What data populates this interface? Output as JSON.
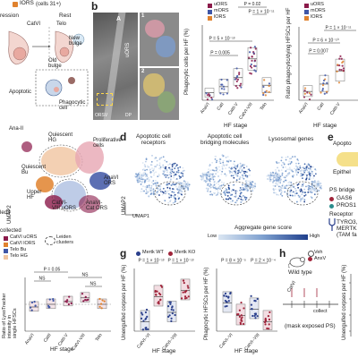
{
  "panel_a": {
    "legend_top": "IORS",
    "legend_cells": "(cells 31+)",
    "label_rest": "Rest",
    "label_ression": "ression",
    "label_catvi": "CatVI",
    "label_telo": "Telo",
    "label_new_bulge": "New\nbulge",
    "label_old_bulge": "Old\nbulge",
    "label_apoptotic": "Apoptotic",
    "label_phagocytic_cell": "Phagocytic\ncell"
  },
  "panel_b": {
    "letter": "b",
    "em_label_uors": "uORS",
    "em_label_a": "A",
    "em_label_orsv": "ORSV",
    "em_label_dp": "DP",
    "inset_1": "1",
    "inset_2": "2",
    "chart1_ylabel": "Phagocytic cells per HF (%)",
    "chart2_ylabel": "Ratio phagocytic/dying HFSCs per HF",
    "xlabel": "HF stage",
    "legend": [
      "uORS",
      "mORS",
      "lORS"
    ],
    "pvals_chart1": [
      "P = 0.02",
      "P = 1 × 10⁻¹¹",
      "P = 5 × 10⁻¹³",
      "P = 0.005"
    ],
    "pvals_chart2": [
      "P = 1 × 10⁻¹¹",
      "P = 6 × 10⁻¹⁰",
      "P = 0.007"
    ],
    "categories1": [
      "AnaVI",
      "CatI",
      "CatII-V",
      "CatVI-VIII",
      "Telo"
    ],
    "categories2": [
      "AnaVI",
      "CatI",
      "CatII-V"
    ]
  },
  "panel_c": {
    "label_quiescent_hg": "Quiescent\nHG",
    "label_proliferative": "Proliferative\ncells",
    "label_quiescent_bu": "Quiescent\nBu",
    "label_upper_hf": "Upper\nHF",
    "label_anavi_ors": "AnaVI\nORS",
    "label_catvi_uors": "CatVI-\nVIII uORS",
    "label_anavi_cat": "AnaVI-\nCat ORS",
    "umap2": "UMAP2",
    "umap1": "UMAP1",
    "leq3": "leq3",
    "label_collected": "collected",
    "legend": [
      "CatVI uORS",
      "CatVI lORS",
      "Telo Bu",
      "Telo HG"
    ],
    "leiden": "Leiden\nclusters",
    "ana_ii": "Ana-II"
  },
  "panel_d": {
    "letter": "d",
    "titles": [
      "Apoptotic cell\nreceptors",
      "Apoptotic cell\nbridging molecules",
      "Lysosomal genes"
    ],
    "umap1": "UMAP1",
    "umap2": "UMAP2",
    "score_label": "Aggregate gene score",
    "low": "Low",
    "high": "High"
  },
  "panel_e": {
    "letter": "e",
    "apopto": "Apopto",
    "epithel": "Epithel",
    "ps_bridge": "PS bridge",
    "gas6": "GAS6",
    "pros1": "PROS1",
    "receptors": "Receptor",
    "tyro3": "TYRO3,",
    "mertk": "MERTK",
    "tam": "(TAM fa"
  },
  "panel_f": {
    "ylabel": "Ratio of LysoTracker intensity in single HFSCs",
    "xlabel": "HF stage",
    "categories": [
      "AnaVI",
      "CatII",
      "CatII-V",
      "CatVI-VIII",
      "Telo"
    ],
    "p005": "P = 0.05",
    "ns": [
      "NS",
      "NS",
      "NS"
    ]
  },
  "panel_g": {
    "letter": "g",
    "legend": [
      "Mertk WT",
      "Mertk KO"
    ],
    "ylabel1": "Unengulfed corpses per HF (%)",
    "ylabel2": "Phagocytic HFSCs per HF (%)",
    "xlabel": "HF stage",
    "pvals1": [
      "P = 1 × 10⁻¹³",
      "P = 1 × 10⁻¹³"
    ],
    "pvals2": [
      "P = 8 × 10⁻⁵",
      "P = 2 × 10⁻⁴"
    ],
    "categories": [
      "CatVI–VI",
      "CatVI–VIII"
    ],
    "categories2": [
      "CatVI–VI",
      "CatVI–VIII"
    ]
  },
  "panel_h": {
    "letter": "h",
    "veh": "Veh",
    "annv": "AnxV",
    "wild_type": "Wild type",
    "catvi": "CatVI",
    "mask": "(mask exposed PS)",
    "collect": "collect",
    "ylabel": "Unengulfed corpses per HF (%)"
  },
  "colors": {
    "uors": "#8b1a4a",
    "mors": "#3f56a6",
    "lors": "#e0822e",
    "wt": "#2a3f8c",
    "ko": "#a0243a",
    "score_low": "#dbe6f2",
    "score_high": "#1f3f8c"
  }
}
